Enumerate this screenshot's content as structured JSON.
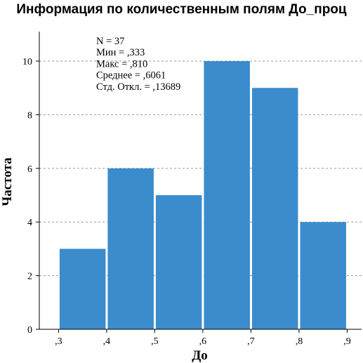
{
  "chart_data": {
    "type": "bar",
    "title": "Информация по количественным полям До_проц",
    "xlabel": "До",
    "ylabel": "Частота",
    "bins": [
      [
        0.3,
        0.4
      ],
      [
        0.4,
        0.5
      ],
      [
        0.5,
        0.6
      ],
      [
        0.6,
        0.7
      ],
      [
        0.7,
        0.8
      ],
      [
        0.8,
        0.9
      ]
    ],
    "values": [
      3,
      6,
      5,
      10,
      9,
      4
    ],
    "xlim": [
      0.26,
      0.93
    ],
    "ylim": [
      0,
      11.1
    ],
    "x_ticks": [
      {
        "value": 0.3,
        "label": ",3"
      },
      {
        "value": 0.4,
        "label": ",4"
      },
      {
        "value": 0.5,
        "label": ",5"
      },
      {
        "value": 0.6,
        "label": ",6"
      },
      {
        "value": 0.7,
        "label": ",7"
      },
      {
        "value": 0.8,
        "label": ",8"
      },
      {
        "value": 0.9,
        "label": ",9"
      }
    ],
    "y_ticks": [
      0,
      2,
      4,
      6,
      8,
      10
    ],
    "grid": "horizontal dashed",
    "bar_color": "#3a8ccc",
    "statistics": [
      "N = 37",
      "Мин = ,333",
      "Макс = ,810",
      "Среднее = ,6061",
      "Стд. Откл. = ,13689"
    ]
  }
}
